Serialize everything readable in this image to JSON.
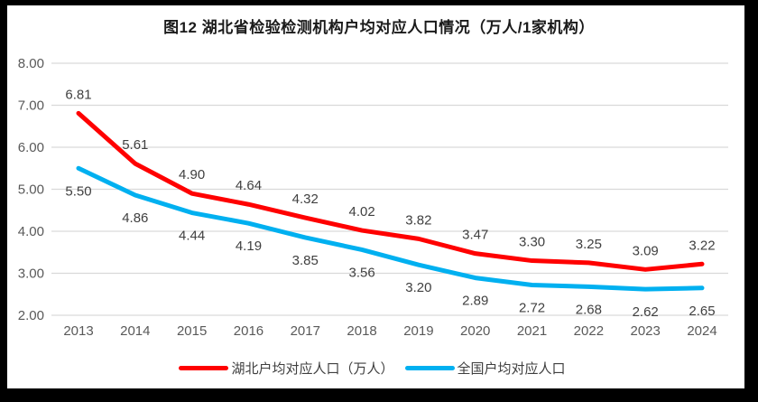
{
  "chart_data": {
    "type": "line",
    "title": "图12 湖北省检验检测机构户均对应人口情况（万人/1家机构）",
    "categories": [
      "2013",
      "2014",
      "2015",
      "2016",
      "2017",
      "2018",
      "2019",
      "2020",
      "2021",
      "2022",
      "2023",
      "2024"
    ],
    "series": [
      {
        "name": "湖北户均对应人口（万人）",
        "color": "#ff0000",
        "label_position": "above",
        "values": [
          6.81,
          5.61,
          4.9,
          4.64,
          4.32,
          4.02,
          3.82,
          3.47,
          3.3,
          3.25,
          3.09,
          3.22
        ]
      },
      {
        "name": "全国户均对应人口",
        "color": "#00b0f0",
        "label_position": "below",
        "values": [
          5.5,
          4.86,
          4.44,
          4.19,
          3.85,
          3.56,
          3.2,
          2.89,
          2.72,
          2.68,
          2.62,
          2.65
        ]
      }
    ],
    "ylim": [
      2,
      8
    ],
    "y_tick_step": 1,
    "y_tick_format": "2-decimals",
    "grid": "horizontal",
    "legend_position": "bottom",
    "gridline_color": "#d9d9d9",
    "axis_label_color": "#595959",
    "data_label_color": "#404040",
    "frame_color": "#000000",
    "background_color": "#ffffff"
  }
}
